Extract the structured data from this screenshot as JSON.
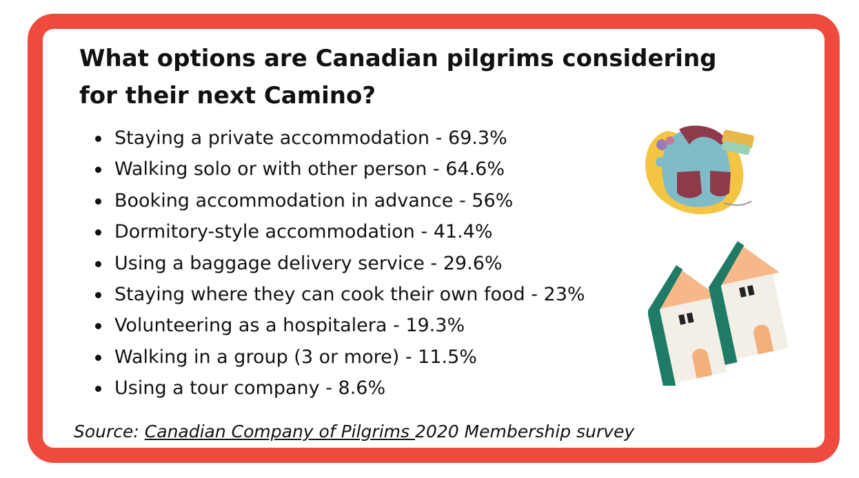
{
  "title": "What options are Canadian pilgrims considering for their next Camino?",
  "items": [
    "Staying a private accommodation - 69.3%",
    "Walking solo or with other person - 64.6%",
    "Booking accommodation in advance - 56%",
    "Dormitory-style accommodation - 41.4%",
    "Using a baggage delivery service - 29.6%",
    "Staying where they can cook their own food - 23%",
    "Volunteering as a hospitalera - 19.3%",
    "Walking in a group (3 or more) - 11.5%",
    "Using a tour company - 8.6%"
  ],
  "source": {
    "prefix": "Source: ",
    "link": "Canadian Company of Pilgrims ",
    "suffix": "2020 Membership survey"
  }
}
